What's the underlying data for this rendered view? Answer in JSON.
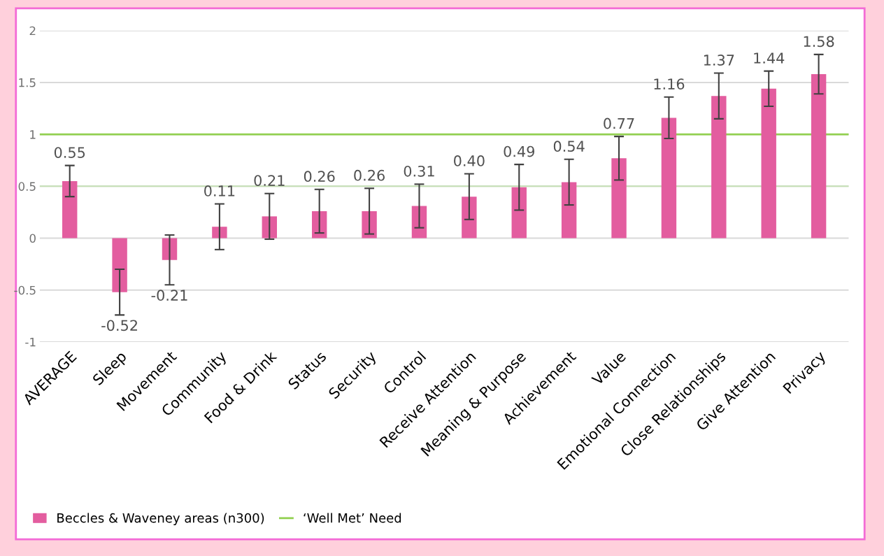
{
  "chart_data": {
    "type": "bar",
    "categories": [
      "AVERAGE",
      "Sleep",
      "Movement",
      "Community",
      "Food & Drink",
      "Status",
      "Security",
      "Control",
      "Receive Attention",
      "Meaning & Purpose",
      "Achievement",
      "Value",
      "Emotional Connection",
      "Close Relationships",
      "Give Attention",
      "Privacy"
    ],
    "series": [
      {
        "name": "Beccles & Waveney areas (n300)",
        "color": "#e35d9f",
        "values": [
          0.55,
          -0.52,
          -0.21,
          0.11,
          0.21,
          0.26,
          0.26,
          0.31,
          0.4,
          0.49,
          0.54,
          0.77,
          1.16,
          1.37,
          1.44,
          1.58
        ],
        "errors": [
          0.15,
          0.22,
          0.24,
          0.22,
          0.22,
          0.21,
          0.22,
          0.21,
          0.22,
          0.22,
          0.22,
          0.21,
          0.2,
          0.22,
          0.17,
          0.19
        ],
        "value_labels": [
          "0.55",
          "-0.52",
          "-0.21",
          "0.11",
          "0.21",
          "0.26",
          "0.26",
          "0.31",
          "0.40",
          "0.49",
          "0.54",
          "0.77",
          "1.16",
          "1.37",
          "1.44",
          "1.58"
        ]
      }
    ],
    "ylim": [
      -1,
      2
    ],
    "yticks": [
      -1,
      -0.5,
      0,
      0.5,
      1,
      1.5,
      2
    ],
    "grid": "y",
    "ref_lines": [
      {
        "axis": "y",
        "value": 1,
        "label": "‘Well Met’ Need",
        "color": "#92d050"
      },
      {
        "axis": "y",
        "value": 0.5,
        "color": "#c5e0b4"
      }
    ],
    "legend": "bottom left"
  }
}
